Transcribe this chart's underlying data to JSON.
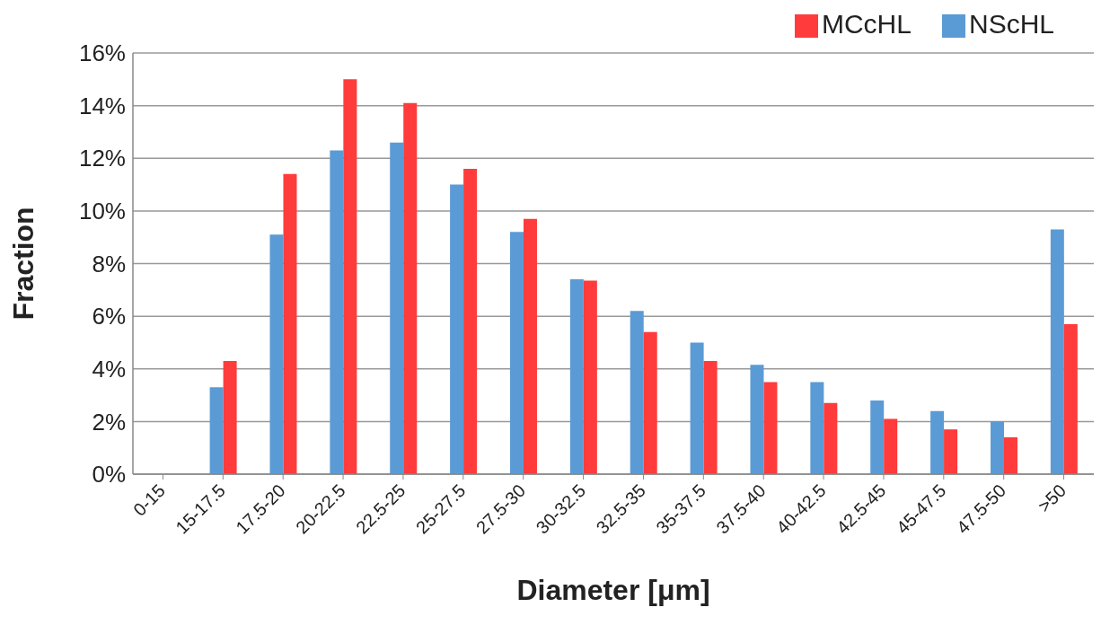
{
  "chart_data": {
    "type": "bar",
    "xlabel": "Diameter [μm]",
    "ylabel": "Fraction",
    "categories": [
      "0-15",
      "15-17.5",
      "17.5-20",
      "20-22.5",
      "22.5-25",
      "25-27.5",
      "27.5-30",
      "30-32.5",
      "32.5-35",
      "35-37.5",
      "37.5-40",
      "40-42.5",
      "42.5-45",
      "45-47.5",
      "47.5-50",
      ">50"
    ],
    "series": [
      {
        "name": "NScHL",
        "color": "#5b9bd5",
        "values": [
          0,
          3.3,
          9.1,
          12.3,
          12.6,
          11.0,
          9.2,
          7.4,
          6.2,
          5.0,
          4.15,
          3.5,
          2.8,
          2.4,
          2.0,
          9.3
        ]
      },
      {
        "name": "MCcHL",
        "color": "#ff3b3b",
        "values": [
          0,
          4.3,
          11.4,
          15.0,
          14.1,
          11.6,
          9.7,
          7.35,
          5.4,
          4.3,
          3.5,
          2.7,
          2.1,
          1.7,
          1.4,
          5.7
        ]
      }
    ],
    "ylim": [
      0,
      16
    ],
    "yticks": [
      {
        "value": 0,
        "label": "0%"
      },
      {
        "value": 2,
        "label": "2%"
      },
      {
        "value": 4,
        "label": "4%"
      },
      {
        "value": 6,
        "label": "6%"
      },
      {
        "value": 8,
        "label": "8%"
      },
      {
        "value": 10,
        "label": "10%"
      },
      {
        "value": 12,
        "label": "12%"
      },
      {
        "value": 14,
        "label": "14%"
      },
      {
        "value": 16,
        "label": "16%"
      }
    ],
    "grid": "y",
    "legend": "top right"
  }
}
